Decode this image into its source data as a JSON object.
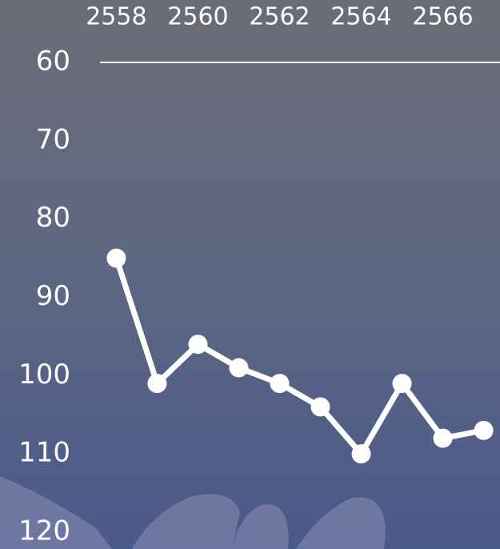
{
  "chart_data": {
    "type": "line",
    "x": [
      2558,
      2559,
      2560,
      2561,
      2562,
      2563,
      2564,
      2565,
      2566,
      2567
    ],
    "values": [
      85,
      101,
      96,
      99,
      101,
      104,
      110,
      101,
      108,
      107
    ],
    "color": "#ffffff",
    "xlim": [
      2557.6,
      2567.4
    ],
    "xticks": [
      2558,
      2560,
      2562,
      2564,
      2566
    ],
    "ylim": [
      60,
      120
    ],
    "yticks": [
      60,
      70,
      80,
      90,
      100,
      110,
      120
    ],
    "y_inverted": true,
    "x_axis_position": "top"
  }
}
